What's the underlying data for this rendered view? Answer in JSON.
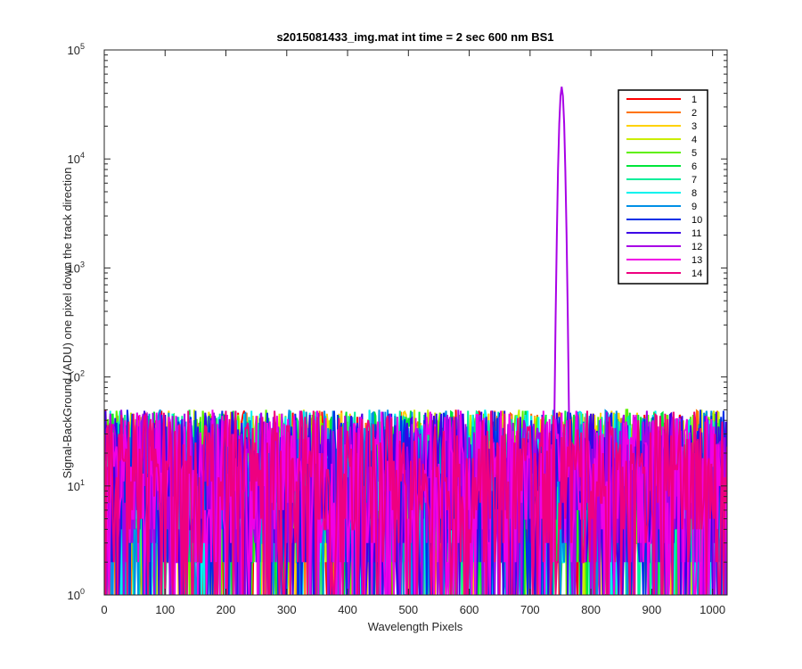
{
  "chart_data": {
    "type": "line",
    "title": "s2015081433_img.mat int time = 2 sec  600 nm BS1",
    "xlabel": "Wavelength Pixels",
    "ylabel": "Signal-BackGround (ADU) one pixel down the track direction",
    "xlim": [
      0,
      1024
    ],
    "ylim": [
      1,
      100000
    ],
    "yscale": "log",
    "xticks": [
      0,
      100,
      200,
      300,
      400,
      500,
      600,
      700,
      800,
      900,
      1000
    ],
    "yticks": [
      {
        "value": 1,
        "base": "10",
        "exp": "0"
      },
      {
        "value": 10,
        "base": "10",
        "exp": "1"
      },
      {
        "value": 100,
        "base": "10",
        "exp": "2"
      },
      {
        "value": 1000,
        "base": "10",
        "exp": "3"
      },
      {
        "value": 10000,
        "base": "10",
        "exp": "4"
      },
      {
        "value": 100000,
        "base": "10",
        "exp": "5"
      }
    ],
    "grid": false,
    "box": true,
    "legend_position": "top-right",
    "noise_range": [
      1,
      50
    ],
    "series": [
      {
        "name": "1",
        "color": "#ff0000"
      },
      {
        "name": "2",
        "color": "#ff7300"
      },
      {
        "name": "3",
        "color": "#ffd200"
      },
      {
        "name": "4",
        "color": "#cbee00"
      },
      {
        "name": "5",
        "color": "#5ef000"
      },
      {
        "name": "6",
        "color": "#00e63a"
      },
      {
        "name": "7",
        "color": "#00ee9a"
      },
      {
        "name": "8",
        "color": "#00f2ee"
      },
      {
        "name": "9",
        "color": "#0090e6"
      },
      {
        "name": "10",
        "color": "#0030e6"
      },
      {
        "name": "11",
        "color": "#3c00e6"
      },
      {
        "name": "12",
        "color": "#a800e6",
        "peak": {
          "x": 752,
          "value": 46000
        }
      },
      {
        "name": "13",
        "color": "#f000e6"
      },
      {
        "name": "14",
        "color": "#ee0080"
      }
    ]
  }
}
